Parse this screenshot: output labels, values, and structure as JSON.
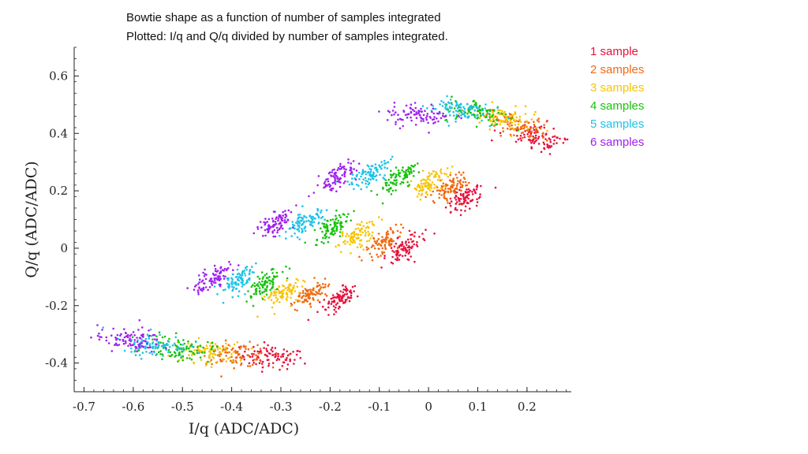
{
  "chart_data": {
    "type": "scatter",
    "title_lines": [
      "Bowtie shape as a function of number of samples integrated",
      "Plotted: I/q and Q/q divided by number of samples integrated."
    ],
    "xlabel": "I/q (ADC/ADC)",
    "ylabel": "Q/q (ADC/ADC)",
    "xlim": [
      -0.72,
      0.29
    ],
    "ylim": [
      -0.5,
      0.7
    ],
    "xticks": [
      -0.7,
      -0.6,
      -0.5,
      -0.4,
      -0.3,
      -0.2,
      -0.1,
      0,
      0.1,
      0.2
    ],
    "yticks": [
      -0.4,
      -0.2,
      0,
      0.2,
      0.4,
      0.6
    ],
    "grid": false,
    "legend_position": "top-right",
    "series": [
      {
        "name": "1 sample",
        "color": "#e8103c",
        "clusters": [
          [
            -0.32,
            -0.38
          ],
          [
            -0.18,
            -0.175
          ],
          [
            -0.05,
            0.0
          ],
          [
            0.075,
            0.175
          ],
          [
            0.22,
            0.38
          ]
        ]
      },
      {
        "name": "2 samples",
        "color": "#f06a10",
        "clusters": [
          [
            -0.39,
            -0.37
          ],
          [
            -0.24,
            -0.165
          ],
          [
            -0.09,
            0.025
          ],
          [
            0.04,
            0.205
          ],
          [
            0.18,
            0.425
          ]
        ]
      },
      {
        "name": "3 samples",
        "color": "#f7c400",
        "clusters": [
          [
            -0.45,
            -0.36
          ],
          [
            -0.29,
            -0.15
          ],
          [
            -0.145,
            0.045
          ],
          [
            0.0,
            0.225
          ],
          [
            0.15,
            0.45
          ]
        ]
      },
      {
        "name": "4 samples",
        "color": "#17c20e",
        "clusters": [
          [
            -0.505,
            -0.35
          ],
          [
            -0.335,
            -0.13
          ],
          [
            -0.195,
            0.07
          ],
          [
            -0.06,
            0.245
          ],
          [
            0.1,
            0.475
          ]
        ]
      },
      {
        "name": "5 samples",
        "color": "#1ec3e8",
        "clusters": [
          [
            -0.555,
            -0.335
          ],
          [
            -0.39,
            -0.115
          ],
          [
            -0.25,
            0.09
          ],
          [
            -0.12,
            0.255
          ],
          [
            0.055,
            0.485
          ]
        ]
      },
      {
        "name": "6 samples",
        "color": "#a020f0",
        "clusters": [
          [
            -0.61,
            -0.32
          ],
          [
            -0.44,
            -0.105
          ],
          [
            -0.31,
            0.09
          ],
          [
            -0.19,
            0.245
          ],
          [
            -0.02,
            0.465
          ]
        ]
      }
    ],
    "points_per_cluster": 90,
    "cluster_spread": {
      "along": 0.028,
      "across": 0.008
    }
  }
}
